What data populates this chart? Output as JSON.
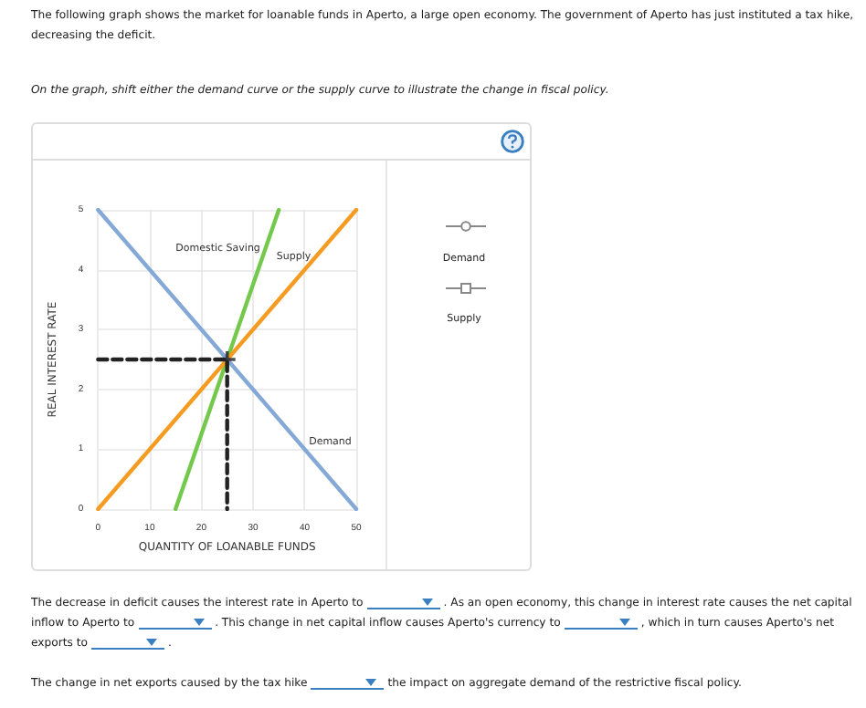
{
  "chart_data": {
    "type": "line",
    "title": "The following graph shows the market for loanable funds in Aperto, a large open economy. The government of Aperto has just instituted a tax hike, decreasing the deficit.",
    "subtitle": "On the graph, shift either the demand curve or the supply curve to illustrate the change in fiscal policy.",
    "xlabel": "QUANTITY OF LOANABLE FUNDS",
    "ylabel": "REAL INTEREST RATE",
    "xlim": [
      0,
      50
    ],
    "xticks": [
      0,
      10,
      20,
      30,
      40,
      50
    ],
    "ylim": [
      0,
      5
    ],
    "yticks": [
      0,
      1,
      2,
      3,
      4,
      5
    ],
    "grid": true,
    "legend": false,
    "marker": "none",
    "line_style": "solid",
    "series": [
      {
        "name": "Domestic Saving",
        "color": "#74c94c",
        "x": [
          15,
          35
        ],
        "values": [
          0,
          5
        ]
      },
      {
        "name": "Supply",
        "color": "#f59b22",
        "x": [
          0,
          50
        ],
        "values": [
          0,
          5
        ]
      },
      {
        "name": "Demand",
        "color": "#84a9d6",
        "x": [
          0,
          50
        ],
        "values": [
          5,
          0
        ]
      },
      {
        "color": "#222222",
        "x": [
          0,
          25,
          25
        ],
        "values": [
          2.5,
          2.5,
          0
        ],
        "line_style": "dashed"
      },
      {
        "type": "scatter",
        "color": "#222222",
        "x": [
          25
        ],
        "values": [
          2.5
        ],
        "marker": "cross"
      }
    ],
    "annotations": [
      "Demand",
      "Supply",
      "The decrease in deficit causes the interest rate in Aperto to",
      ". As an open economy, this change in interest rate causes the net capital inflow to Aperto to",
      ". This change in net capital inflow causes Aperto's currency to",
      ", which in turn causes Aperto's net exports to",
      ".",
      "The change in net exports caused by the tax hike",
      "the impact on aggregate demand of the restrictive fiscal policy."
    ]
  }
}
